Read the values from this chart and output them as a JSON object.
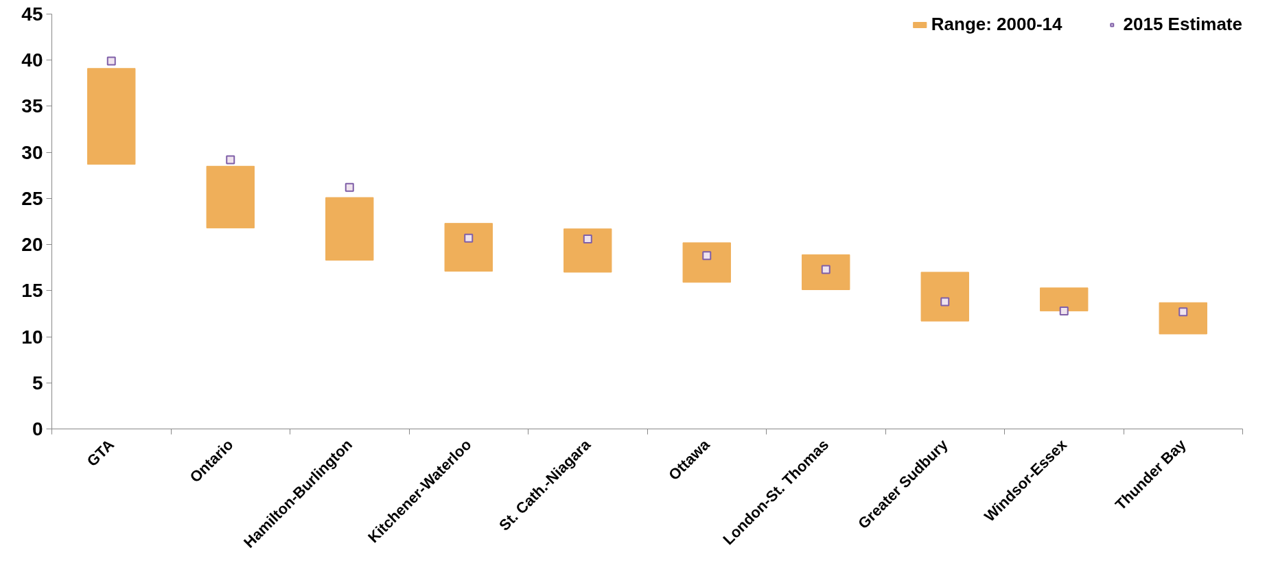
{
  "chart_data": {
    "type": "bar",
    "categories": [
      "GTA",
      "Ontario",
      "Hamilton-Burlington",
      "Kitchener-Waterloo",
      "St. Cath.-Niagara",
      "Ottawa",
      "London-St. Thomas",
      "Greater Sudbury",
      "Windsor-Essex",
      "Thunder Bay"
    ],
    "series": [
      {
        "name": "Range: 2000-14",
        "color": "#efaf5a",
        "base": [
          28.7,
          21.8,
          18.3,
          17.1,
          17.0,
          15.9,
          15.1,
          11.7,
          12.8,
          10.3
        ],
        "values": [
          10.4,
          6.7,
          6.8,
          5.2,
          4.7,
          4.3,
          3.8,
          5.3,
          2.5,
          3.4
        ]
      },
      {
        "name": "2015 Estimate",
        "type": "scatter",
        "marker": "square",
        "color": "#7f5fa8",
        "values": [
          39.9,
          29.2,
          26.2,
          20.7,
          20.6,
          18.8,
          17.3,
          13.8,
          12.8,
          12.7
        ]
      }
    ],
    "ylim": [
      0,
      45
    ],
    "yticks": [
      0,
      5,
      10,
      15,
      20,
      25,
      30,
      35,
      40,
      45
    ],
    "grid": false,
    "legend": "top right"
  }
}
